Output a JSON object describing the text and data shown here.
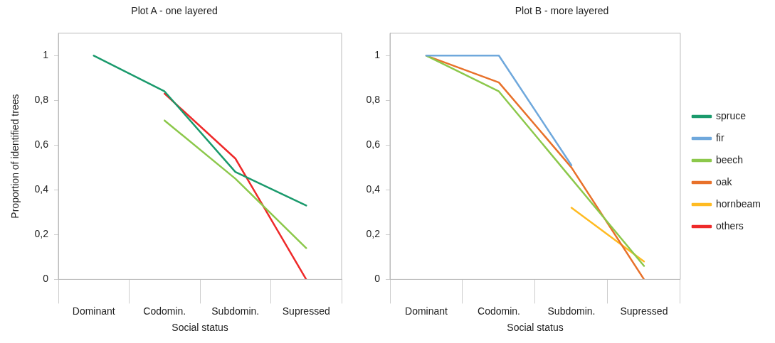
{
  "chart_data": [
    {
      "type": "line",
      "title": "Plot A - one layered",
      "xlabel": "Social status",
      "ylabel": "Proportion of identified trees",
      "categories": [
        "Dominant",
        "Codomin.",
        "Subdomin.",
        "Supressed"
      ],
      "ylim": [
        0,
        1.1
      ],
      "yticks": [
        {
          "value": 0,
          "label": "0"
        },
        {
          "value": 0.2,
          "label": "0,2"
        },
        {
          "value": 0.4,
          "label": "0,4"
        },
        {
          "value": 0.6,
          "label": "0,6"
        },
        {
          "value": 0.8,
          "label": "0,8"
        },
        {
          "value": 1,
          "label": "1"
        }
      ],
      "grid": false,
      "legend": false,
      "marker": "none",
      "line_style": "solid",
      "series": [
        {
          "color": "#1a9a6c",
          "values": [
            1,
            0.84,
            0.48,
            0.33
          ]
        },
        {
          "color": "#8cc84b",
          "values": [
            null,
            0.71,
            0.45,
            0.14
          ]
        },
        {
          "color": "#ee2a2a",
          "values": [
            null,
            0.83,
            0.54,
            0
          ]
        }
      ]
    },
    {
      "type": "line",
      "title": "Plot B - more layered",
      "xlabel": "Social status",
      "categories": [
        "Dominant",
        "Codomin.",
        "Subdomin.",
        "Supressed"
      ],
      "ylim": [
        0,
        1.1
      ],
      "yticks": [
        {
          "value": 0,
          "label": "0"
        },
        {
          "value": 0.2,
          "label": "0,2"
        },
        {
          "value": 0.4,
          "label": "0,4"
        },
        {
          "value": 0.6,
          "label": "0,6"
        },
        {
          "value": 0.8,
          "label": "0,8"
        },
        {
          "value": 1,
          "label": "1"
        }
      ],
      "grid": false,
      "legend": "right",
      "marker": "none",
      "line_style": "solid",
      "series": [
        {
          "name": "spruce",
          "color": "#1a9a6c",
          "values": [
            null,
            null,
            null,
            null
          ]
        },
        {
          "name": "fir",
          "color": "#6fa8dc",
          "values": [
            1,
            1,
            0.51,
            null
          ]
        },
        {
          "name": "beech",
          "color": "#8cc84b",
          "values": [
            1,
            0.84,
            0.45,
            0.06
          ]
        },
        {
          "name": "oak",
          "color": "#e8712a",
          "values": [
            1,
            0.88,
            0.5,
            0
          ]
        },
        {
          "name": "hornbeam",
          "color": "#ffbb22",
          "values": [
            null,
            null,
            0.32,
            0.08
          ]
        },
        {
          "name": "others",
          "color": "#ee2a2a",
          "values": [
            null,
            null,
            null,
            null
          ]
        }
      ]
    }
  ]
}
